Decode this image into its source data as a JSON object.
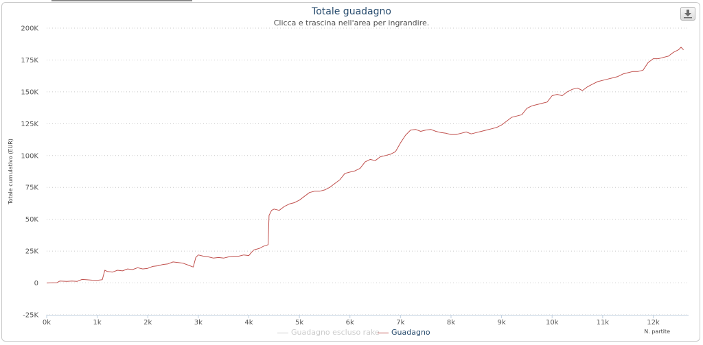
{
  "chart_data": {
    "type": "line",
    "title": "Totale guadagno",
    "subtitle": "Clicca e trascina nell'area per ingrandire.",
    "ylabel": "Totale cumulativo (EUR)",
    "xlabel": "N. partite",
    "ylim": [
      -25000,
      200000
    ],
    "xlim": [
      0,
      12700
    ],
    "y_ticks": [
      -25000,
      0,
      25000,
      50000,
      75000,
      100000,
      125000,
      150000,
      175000,
      200000
    ],
    "y_tick_labels": [
      "-25K",
      "0",
      "25K",
      "50K",
      "75K",
      "100K",
      "125K",
      "150K",
      "175K",
      "200K"
    ],
    "x_ticks": [
      0,
      1000,
      2000,
      3000,
      4000,
      5000,
      6000,
      7000,
      8000,
      9000,
      10000,
      11000,
      12000
    ],
    "x_tick_labels": [
      "0k",
      "1k",
      "2k",
      "3k",
      "4k",
      "5k",
      "6k",
      "7k",
      "8k",
      "9k",
      "10k",
      "11k",
      "12k"
    ],
    "grid": "horizontal dotted",
    "legend_position": "bottom-center",
    "series": [
      {
        "name": "Guadagno escluso rake",
        "color": "#d8d8d8",
        "visible": false,
        "x": [],
        "y": []
      },
      {
        "name": "Guadagno",
        "color": "#c0504d",
        "visible": true,
        "x": [
          0,
          200,
          260,
          400,
          500,
          600,
          700,
          800,
          900,
          1000,
          1100,
          1150,
          1200,
          1300,
          1400,
          1500,
          1600,
          1700,
          1800,
          1900,
          2000,
          2100,
          2200,
          2300,
          2400,
          2500,
          2600,
          2700,
          2800,
          2900,
          2950,
          3000,
          3100,
          3200,
          3300,
          3400,
          3500,
          3600,
          3700,
          3800,
          3900,
          4000,
          4050,
          4100,
          4200,
          4300,
          4380,
          4400,
          4450,
          4500,
          4600,
          4700,
          4800,
          4900,
          5000,
          5100,
          5200,
          5300,
          5400,
          5500,
          5600,
          5700,
          5800,
          5900,
          6000,
          6100,
          6200,
          6300,
          6400,
          6500,
          6600,
          6700,
          6800,
          6900,
          7000,
          7100,
          7200,
          7300,
          7400,
          7500,
          7600,
          7700,
          7800,
          7900,
          8000,
          8100,
          8200,
          8300,
          8400,
          8500,
          8600,
          8700,
          8800,
          8900,
          9000,
          9100,
          9200,
          9300,
          9400,
          9500,
          9600,
          9700,
          9800,
          9900,
          10000,
          10100,
          10200,
          10300,
          10400,
          10500,
          10600,
          10700,
          10800,
          10900,
          11000,
          11100,
          11200,
          11300,
          11400,
          11500,
          11600,
          11700,
          11800,
          11900,
          12000,
          12100,
          12200,
          12300,
          12400,
          12500,
          12550,
          12600
        ],
        "y": [
          0,
          200,
          1500,
          1200,
          1500,
          1200,
          2800,
          2500,
          2200,
          2000,
          2600,
          10000,
          9000,
          8500,
          10000,
          9500,
          11000,
          10500,
          12000,
          11000,
          11500,
          13000,
          13500,
          14500,
          15000,
          16500,
          16000,
          15500,
          14000,
          12500,
          20000,
          22000,
          21000,
          20500,
          19500,
          20000,
          19500,
          20500,
          21000,
          21000,
          22000,
          21500,
          24000,
          26000,
          27000,
          29000,
          30000,
          53000,
          57000,
          58000,
          57000,
          60000,
          62000,
          63000,
          65000,
          68000,
          71000,
          72000,
          72000,
          73000,
          75000,
          78000,
          81000,
          86000,
          87000,
          88000,
          90000,
          95000,
          97000,
          96000,
          99000,
          100000,
          101000,
          103000,
          110000,
          116000,
          120000,
          120500,
          119000,
          120000,
          120500,
          119000,
          118000,
          117500,
          116500,
          116500,
          117500,
          118500,
          117000,
          118000,
          119000,
          120000,
          121000,
          122000,
          124000,
          127000,
          130000,
          131000,
          132000,
          137000,
          139000,
          140000,
          141000,
          142000,
          147000,
          148000,
          147000,
          150000,
          152000,
          153000,
          151000,
          154000,
          156000,
          158000,
          159000,
          160000,
          161000,
          162000,
          164000,
          165000,
          166000,
          166000,
          167000,
          173000,
          176000,
          176000,
          177000,
          178000,
          181000,
          183000,
          185000,
          183000
        ]
      }
    ]
  },
  "legend": {
    "item1": "Guadagno escluso rake",
    "item2": "Guadagno"
  },
  "toolbar": {
    "export_icon": "download-icon"
  }
}
